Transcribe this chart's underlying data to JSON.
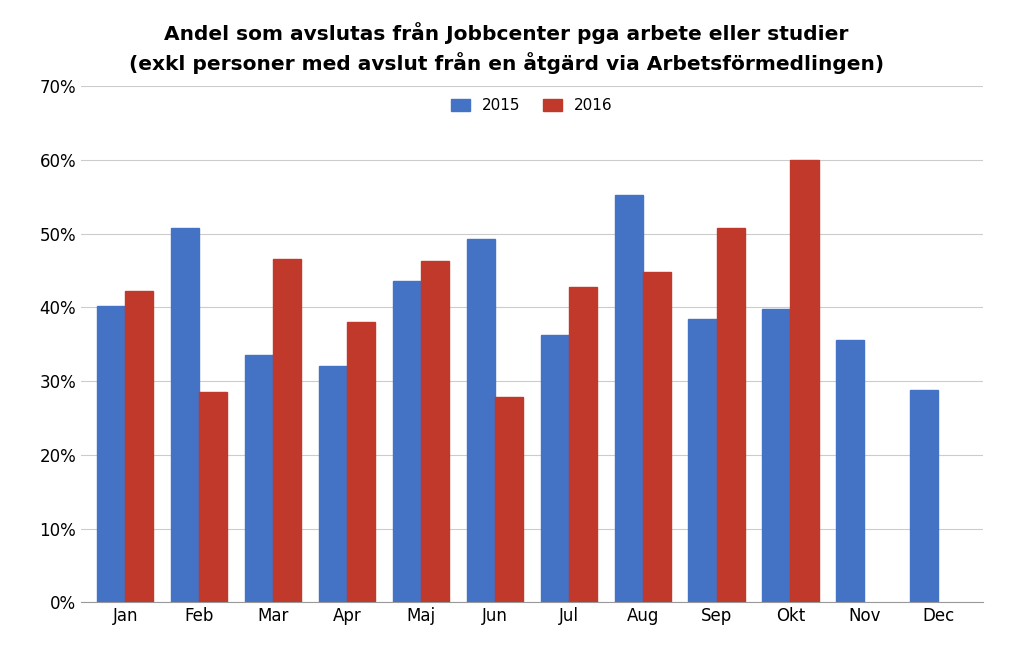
{
  "title_line1": "Andel som avslutas från Jobbcenter pga arbete eller studier",
  "title_line2": "(exkl personer med avslut från en åtgärd via Arbetsförmedlingen)",
  "categories": [
    "Jan",
    "Feb",
    "Mar",
    "Apr",
    "Maj",
    "Jun",
    "Jul",
    "Aug",
    "Sep",
    "Okt",
    "Nov",
    "Dec"
  ],
  "values_2015": [
    0.402,
    0.508,
    0.336,
    0.32,
    0.436,
    0.493,
    0.362,
    0.552,
    0.384,
    0.398,
    0.356,
    0.288
  ],
  "values_2016": [
    0.422,
    0.285,
    0.465,
    0.38,
    0.463,
    0.278,
    0.428,
    0.448,
    0.507,
    0.6,
    null,
    null
  ],
  "color_2015": "#4472C4",
  "color_2016": "#C0392B",
  "legend_2015": "2015",
  "legend_2016": "2016",
  "ylim": [
    0.0,
    0.7
  ],
  "yticks": [
    0.0,
    0.1,
    0.2,
    0.3,
    0.4,
    0.5,
    0.6,
    0.7
  ],
  "ytick_labels": [
    "0%",
    "10%",
    "20%",
    "30%",
    "40%",
    "50%",
    "60%",
    "70%"
  ],
  "background_color": "#FFFFFF",
  "title_fontsize": 14.5,
  "bar_width": 0.38,
  "grid_color": "#CCCCCC"
}
